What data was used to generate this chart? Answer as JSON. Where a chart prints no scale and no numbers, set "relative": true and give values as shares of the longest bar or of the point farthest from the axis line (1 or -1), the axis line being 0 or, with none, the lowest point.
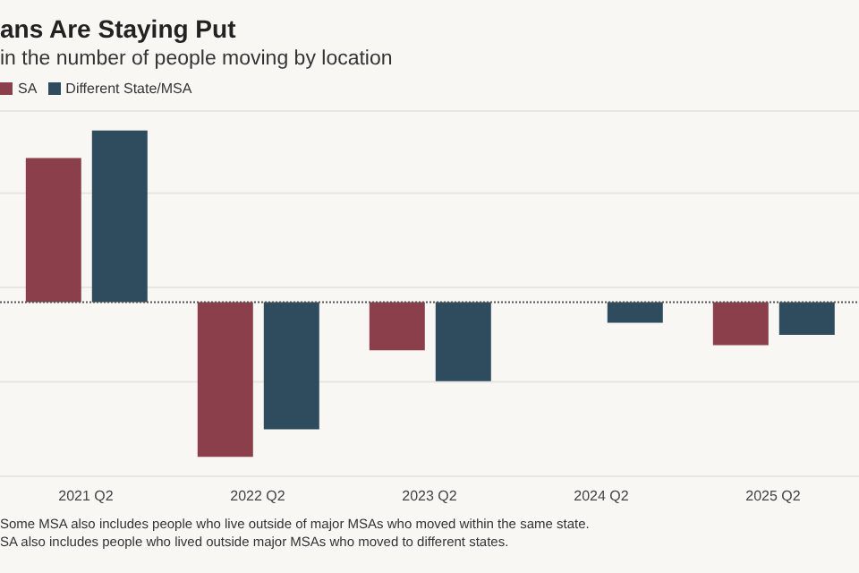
{
  "chart_data": {
    "type": "bar",
    "title": "ans Are Staying Put",
    "subtitle": "in the number of people moving by location",
    "categories": [
      "2021 Q2",
      "2022 Q2",
      "2023 Q2",
      "2024 Q2",
      "2025 Q2"
    ],
    "relative": true,
    "grid": "y",
    "ref_lines": [
      {
        "axis": "y",
        "value": 0,
        "color": "#555555",
        "line_style": "dotted"
      }
    ],
    "legend": "top left",
    "series": [
      {
        "name": "SA",
        "color": "#8b3f4a",
        "values": [
          0.84,
          -0.9,
          -0.28,
          null,
          -0.25
        ]
      },
      {
        "name": "Different State/MSA",
        "color": "#2f4b5e",
        "values": [
          1,
          -0.74,
          -0.46,
          -0.12,
          -0.19
        ]
      }
    ],
    "annotations": [
      "Some MSA also includes people who live outside of major MSAs who moved within the same state.",
      "SA also includes people who lived outside major MSAs who moved to different states."
    ]
  }
}
